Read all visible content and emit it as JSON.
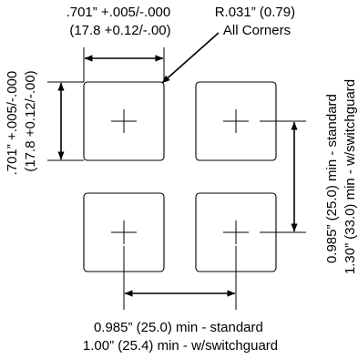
{
  "top_dimension": {
    "line1": ".701” +.005/-.000",
    "line2": "(17.8 +0.12/-.00)"
  },
  "corner_radius": {
    "line1": "R.031” (0.79)",
    "line2": "All Corners"
  },
  "left_dimension": {
    "line1": ".701” +.005/-.000",
    "line2": "(17.8 +0.12/-.00)"
  },
  "right_dimension": {
    "line1": "0.985” (25.0) min - standard",
    "line2": "1.30” (33.0) min - w/switchguard"
  },
  "bottom_dimension": {
    "line1": "0.985” (25.0) min - standard",
    "line2": "1.00” (25.4) min - w/switchguard"
  }
}
